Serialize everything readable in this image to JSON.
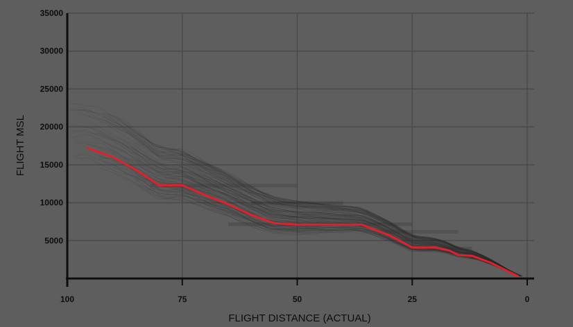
{
  "chart_data": {
    "type": "line",
    "title": "",
    "xlabel": "FLIGHT DISTANCE (ACTUAL)",
    "ylabel": "FLIGHT MSL",
    "xlim": [
      100,
      0
    ],
    "ylim": [
      0,
      35000
    ],
    "x_ticks": [
      100,
      75,
      50,
      25,
      0
    ],
    "y_ticks": [
      5000,
      10000,
      15000,
      20000,
      25000,
      30000,
      35000
    ],
    "grid": true,
    "legend": "none",
    "colors": {
      "background": "#5e5e5e",
      "grid": "#4a4a4a",
      "axis": "#0d0d0d",
      "highlight": "#e0202b",
      "background_tracks": "#2a2a2a"
    },
    "series": [
      {
        "role": "highlight",
        "color": "#e0202b",
        "points": [
          [
            95.5,
            17200
          ],
          [
            90,
            16000
          ],
          [
            85,
            14300
          ],
          [
            80,
            12300
          ],
          [
            75,
            12300
          ],
          [
            70,
            11000
          ],
          [
            65,
            9800
          ],
          [
            60,
            8400
          ],
          [
            55,
            7300
          ],
          [
            50,
            7100
          ],
          [
            45,
            7100
          ],
          [
            36,
            7100
          ],
          [
            30,
            5700
          ],
          [
            25,
            4100
          ],
          [
            20,
            4100
          ],
          [
            17,
            3700
          ],
          [
            15,
            3100
          ],
          [
            12,
            3000
          ],
          [
            8,
            2100
          ],
          [
            2,
            300
          ]
        ]
      }
    ]
  }
}
